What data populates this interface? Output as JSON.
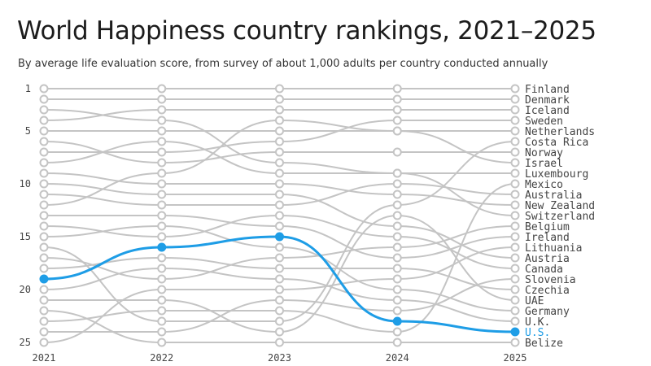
{
  "title": "World Happiness country rankings, 2021–2025",
  "subtitle": "By average life evaluation score, from survey of about 1,000 adults per country conducted annually",
  "colors": {
    "line": "#c4c4c4",
    "highlight": "#1e9de6",
    "text": "#444444",
    "marker_fill": "#ffffff"
  },
  "chart_data": {
    "type": "line",
    "chart_kind": "bump (rank) chart",
    "x": [
      "2021",
      "2022",
      "2023",
      "2024",
      "2025"
    ],
    "y_ticks": [
      1,
      5,
      10,
      15,
      20,
      25
    ],
    "ylim": [
      1,
      25
    ],
    "y_inverted": true,
    "highlight_series": "U.S.",
    "series": [
      {
        "name": "Finland",
        "values": [
          1,
          1,
          1,
          1,
          1
        ]
      },
      {
        "name": "Denmark",
        "values": [
          2,
          2,
          2,
          2,
          2
        ]
      },
      {
        "name": "Iceland",
        "values": [
          4,
          3,
          3,
          3,
          3
        ]
      },
      {
        "name": "Sweden",
        "values": [
          7,
          7,
          6,
          4,
          4
        ]
      },
      {
        "name": "Netherlands",
        "values": [
          5,
          5,
          5,
          5,
          5
        ]
      },
      {
        "name": "Costa Rica",
        "values": [
          16,
          23,
          23,
          12,
          6
        ]
      },
      {
        "name": "Norway",
        "values": [
          6,
          8,
          7,
          7,
          7
        ]
      },
      {
        "name": "Israel",
        "values": [
          12,
          9,
          4,
          5,
          8
        ]
      },
      {
        "name": "Luxembourg",
        "values": [
          8,
          6,
          9,
          9,
          9
        ]
      },
      {
        "name": "Mexico",
        "values": [
          23,
          22,
          22,
          24,
          10
        ]
      },
      {
        "name": "Australia",
        "values": [
          11,
          12,
          12,
          10,
          11
        ]
      },
      {
        "name": "New Zealand",
        "values": [
          9,
          10,
          10,
          11,
          12
        ]
      },
      {
        "name": "Switzerland",
        "values": [
          3,
          4,
          8,
          9,
          13
        ]
      },
      {
        "name": "Belgium",
        "values": [
          17,
          19,
          17,
          16,
          14
        ]
      },
      {
        "name": "Ireland",
        "values": [
          13,
          13,
          14,
          17,
          15
        ]
      },
      {
        "name": "Lithuania",
        "values": [
          25,
          20,
          20,
          19,
          16
        ]
      },
      {
        "name": "Austria",
        "values": [
          10,
          11,
          11,
          14,
          17
        ]
      },
      {
        "name": "Canada",
        "values": [
          14,
          15,
          13,
          15,
          18
        ]
      },
      {
        "name": "Slovenia",
        "values": [
          24,
          24,
          21,
          22,
          19
        ]
      },
      {
        "name": "Czechia",
        "values": [
          18,
          17,
          18,
          18,
          20
        ]
      },
      {
        "name": "UAE",
        "values": [
          21,
          21,
          24,
          13,
          21
        ]
      },
      {
        "name": "Germany",
        "values": [
          15,
          14,
          16,
          20,
          22
        ]
      },
      {
        "name": "U.K.",
        "values": [
          20,
          18,
          19,
          21,
          23
        ]
      },
      {
        "name": "U.S.",
        "values": [
          19,
          16,
          15,
          23,
          24
        ]
      },
      {
        "name": "Belize",
        "values": [
          22,
          25,
          25,
          25,
          25
        ]
      }
    ]
  }
}
